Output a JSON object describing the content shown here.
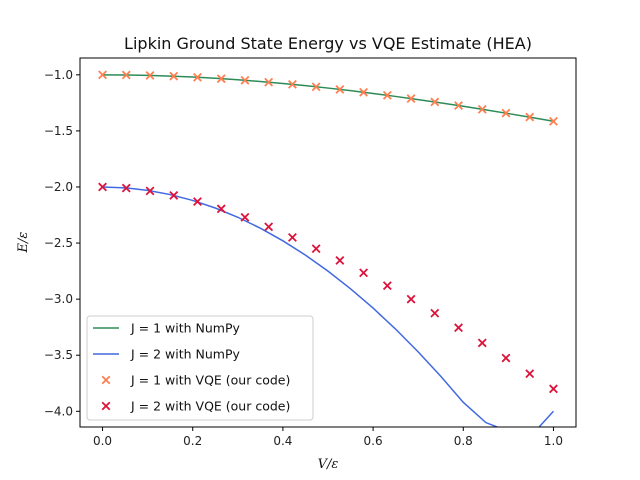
{
  "chart_data": {
    "type": "line",
    "title": "Lipkin Ground State Energy vs VQE Estimate (HEA)",
    "xlabel": "V/ε",
    "ylabel": "E/ε",
    "xlim": [
      -0.05,
      1.05
    ],
    "ylim": [
      -4.14,
      -0.85
    ],
    "x_ticks": [
      0.0,
      0.2,
      0.4,
      0.6,
      0.8,
      1.0
    ],
    "x_tick_labels": [
      "0.0",
      "0.2",
      "0.4",
      "0.6",
      "0.8",
      "1.0"
    ],
    "y_ticks": [
      -1.0,
      -1.5,
      -2.0,
      -2.5,
      -3.0,
      -3.5,
      -4.0
    ],
    "y_tick_labels": [
      "−1.0",
      "−1.5",
      "−2.0",
      "−2.5",
      "−3.0",
      "−3.5",
      "−4.0"
    ],
    "grid": false,
    "legend_position": "lower-left",
    "series": [
      {
        "name": "J = 1 with NumPy",
        "kind": "line",
        "color": "#2e8b57",
        "x": [
          0.0,
          0.05,
          0.1,
          0.15,
          0.2,
          0.25,
          0.3,
          0.35,
          0.4,
          0.45,
          0.5,
          0.55,
          0.6,
          0.65,
          0.7,
          0.75,
          0.8,
          0.85,
          0.9,
          0.95,
          1.0
        ],
        "y": [
          -1.0,
          -1.0012,
          -1.005,
          -1.0112,
          -1.0198,
          -1.0308,
          -1.044,
          -1.0595,
          -1.077,
          -1.0966,
          -1.118,
          -1.1413,
          -1.1662,
          -1.1927,
          -1.2207,
          -1.25,
          -1.2806,
          -1.3124,
          -1.3454,
          -1.3793,
          -1.4142
        ]
      },
      {
        "name": "J = 2 with NumPy",
        "kind": "line",
        "color": "#4169e1",
        "x": [
          0.0,
          0.05,
          0.1,
          0.15,
          0.2,
          0.25,
          0.3,
          0.35,
          0.4,
          0.45,
          0.5,
          0.55,
          0.6,
          0.65,
          0.7,
          0.75,
          0.8,
          0.85,
          0.9,
          0.95,
          1.0
        ],
        "y": [
          -2.0,
          -2.0075,
          -2.03,
          -2.0675,
          -2.12,
          -2.1875,
          -2.27,
          -2.3675,
          -2.48,
          -2.6075,
          -2.75,
          -2.9075,
          -3.08,
          -3.2675,
          -3.47,
          -3.6875,
          -3.92,
          -4.1,
          -4.18,
          -4.22,
          -4.0
        ]
      },
      {
        "name": "J = 1 with VQE (our code)",
        "kind": "scatter",
        "color": "#ff7f50",
        "x": [
          0.0,
          0.0526,
          0.1053,
          0.1579,
          0.2105,
          0.2632,
          0.3158,
          0.3684,
          0.4211,
          0.4737,
          0.5263,
          0.5789,
          0.6316,
          0.6842,
          0.7368,
          0.7895,
          0.8421,
          0.8947,
          0.9474,
          1.0
        ],
        "y": [
          -1.0,
          -1.0014,
          -1.0055,
          -1.0124,
          -1.0219,
          -1.0341,
          -1.0487,
          -1.0657,
          -1.0851,
          -1.1066,
          -1.1302,
          -1.1556,
          -1.1829,
          -1.2118,
          -1.2422,
          -1.2741,
          -1.3072,
          -1.3415,
          -1.377,
          -1.4142
        ]
      },
      {
        "name": "J = 2 with VQE (our code)",
        "kind": "scatter",
        "color": "#dc143c",
        "x": [
          0.0,
          0.0526,
          0.1053,
          0.1579,
          0.2105,
          0.2632,
          0.3158,
          0.3684,
          0.4211,
          0.4737,
          0.5263,
          0.5789,
          0.6316,
          0.6842,
          0.7368,
          0.7895,
          0.8421,
          0.8947,
          0.9474,
          1.0
        ],
        "y": [
          -2.0,
          -2.01,
          -2.035,
          -2.075,
          -2.13,
          -2.195,
          -2.27,
          -2.355,
          -2.45,
          -2.55,
          -2.655,
          -2.765,
          -2.88,
          -3.0,
          -3.125,
          -3.255,
          -3.39,
          -3.525,
          -3.665,
          -3.8
        ]
      }
    ]
  }
}
